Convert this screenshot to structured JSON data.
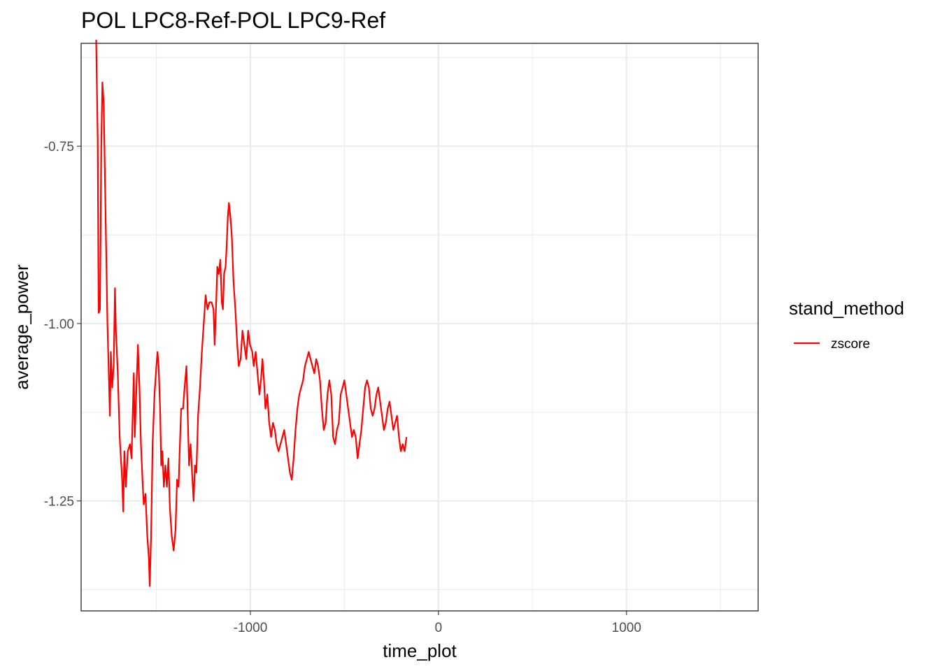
{
  "chart_data": {
    "type": "line",
    "title": "POL LPC8-Ref-POL LPC9-Ref",
    "xlabel": "time_plot",
    "ylabel": "average_power",
    "xlim": [
      -1900,
      1700
    ],
    "ylim": [
      -1.405,
      -0.605
    ],
    "x_ticks": [
      -1000,
      0,
      1000
    ],
    "x_tick_labels": [
      "-1000",
      "0",
      "1000"
    ],
    "y_ticks": [
      -1.25,
      -1.0,
      -0.75
    ],
    "y_tick_labels": [
      "-1.25",
      "-1.00",
      "-0.75"
    ],
    "x_minor": [
      -1500,
      -500,
      500,
      1500
    ],
    "y_minor": [
      -1.375,
      -1.125,
      -0.875,
      -0.625
    ],
    "grid": true,
    "legend": {
      "title": "stand_method",
      "position": "right",
      "entries": [
        "zscore"
      ]
    },
    "series": [
      {
        "name": "zscore",
        "color": "#ff0000",
        "points": [
          [
            -1820,
            -0.6
          ],
          [
            -1812,
            -0.74
          ],
          [
            -1807,
            -0.985
          ],
          [
            -1800,
            -0.98
          ],
          [
            -1793,
            -0.75
          ],
          [
            -1787,
            -0.66
          ],
          [
            -1780,
            -0.69
          ],
          [
            -1770,
            -0.85
          ],
          [
            -1760,
            -1.0
          ],
          [
            -1752,
            -1.08
          ],
          [
            -1747,
            -1.13
          ],
          [
            -1742,
            -1.04
          ],
          [
            -1735,
            -1.09
          ],
          [
            -1727,
            -1.06
          ],
          [
            -1720,
            -0.95
          ],
          [
            -1715,
            -1.01
          ],
          [
            -1705,
            -1.07
          ],
          [
            -1695,
            -1.16
          ],
          [
            -1682,
            -1.22
          ],
          [
            -1676,
            -1.265
          ],
          [
            -1670,
            -1.18
          ],
          [
            -1662,
            -1.23
          ],
          [
            -1652,
            -1.18
          ],
          [
            -1640,
            -1.17
          ],
          [
            -1632,
            -1.19
          ],
          [
            -1626,
            -1.13
          ],
          [
            -1620,
            -1.07
          ],
          [
            -1615,
            -1.16
          ],
          [
            -1606,
            -1.09
          ],
          [
            -1598,
            -1.03
          ],
          [
            -1590,
            -1.09
          ],
          [
            -1582,
            -1.17
          ],
          [
            -1574,
            -1.22
          ],
          [
            -1567,
            -1.255
          ],
          [
            -1558,
            -1.24
          ],
          [
            -1548,
            -1.3
          ],
          [
            -1540,
            -1.33
          ],
          [
            -1535,
            -1.37
          ],
          [
            -1528,
            -1.3
          ],
          [
            -1520,
            -1.17
          ],
          [
            -1510,
            -1.1
          ],
          [
            -1500,
            -1.06
          ],
          [
            -1494,
            -1.04
          ],
          [
            -1488,
            -1.06
          ],
          [
            -1480,
            -1.12
          ],
          [
            -1474,
            -1.2
          ],
          [
            -1468,
            -1.18
          ],
          [
            -1460,
            -1.23
          ],
          [
            -1452,
            -1.2
          ],
          [
            -1444,
            -1.23
          ],
          [
            -1436,
            -1.19
          ],
          [
            -1428,
            -1.26
          ],
          [
            -1418,
            -1.3
          ],
          [
            -1408,
            -1.32
          ],
          [
            -1398,
            -1.29
          ],
          [
            -1390,
            -1.22
          ],
          [
            -1382,
            -1.23
          ],
          [
            -1376,
            -1.18
          ],
          [
            -1368,
            -1.12
          ],
          [
            -1358,
            -1.12
          ],
          [
            -1350,
            -1.09
          ],
          [
            -1340,
            -1.06
          ],
          [
            -1332,
            -1.14
          ],
          [
            -1326,
            -1.2
          ],
          [
            -1318,
            -1.17
          ],
          [
            -1310,
            -1.21
          ],
          [
            -1302,
            -1.25
          ],
          [
            -1295,
            -1.2
          ],
          [
            -1287,
            -1.21
          ],
          [
            -1278,
            -1.13
          ],
          [
            -1268,
            -1.09
          ],
          [
            -1258,
            -1.04
          ],
          [
            -1248,
            -1.0
          ],
          [
            -1238,
            -0.96
          ],
          [
            -1228,
            -0.98
          ],
          [
            -1218,
            -0.97
          ],
          [
            -1206,
            -0.97
          ],
          [
            -1196,
            -0.98
          ],
          [
            -1190,
            -1.03
          ],
          [
            -1182,
            -0.97
          ],
          [
            -1176,
            -0.92
          ],
          [
            -1168,
            -0.93
          ],
          [
            -1160,
            -0.91
          ],
          [
            -1152,
            -0.97
          ],
          [
            -1146,
            -0.98
          ],
          [
            -1140,
            -0.93
          ],
          [
            -1132,
            -0.92
          ],
          [
            -1126,
            -0.89
          ],
          [
            -1120,
            -0.85
          ],
          [
            -1114,
            -0.83
          ],
          [
            -1106,
            -0.85
          ],
          [
            -1098,
            -0.88
          ],
          [
            -1090,
            -0.94
          ],
          [
            -1080,
            -0.98
          ],
          [
            -1070,
            -1.03
          ],
          [
            -1062,
            -1.06
          ],
          [
            -1052,
            -1.05
          ],
          [
            -1042,
            -1.01
          ],
          [
            -1032,
            -1.03
          ],
          [
            -1022,
            -1.05
          ],
          [
            -1012,
            -1.01
          ],
          [
            -1002,
            -1.03
          ],
          [
            -990,
            -1.04
          ],
          [
            -982,
            -1.06
          ],
          [
            -972,
            -1.04
          ],
          [
            -962,
            -1.07
          ],
          [
            -952,
            -1.1
          ],
          [
            -944,
            -1.08
          ],
          [
            -936,
            -1.05
          ],
          [
            -928,
            -1.08
          ],
          [
            -920,
            -1.12
          ],
          [
            -910,
            -1.1
          ],
          [
            -900,
            -1.14
          ],
          [
            -890,
            -1.16
          ],
          [
            -880,
            -1.14
          ],
          [
            -870,
            -1.15
          ],
          [
            -860,
            -1.17
          ],
          [
            -850,
            -1.18
          ],
          [
            -840,
            -1.17
          ],
          [
            -830,
            -1.16
          ],
          [
            -820,
            -1.15
          ],
          [
            -810,
            -1.17
          ],
          [
            -800,
            -1.19
          ],
          [
            -790,
            -1.21
          ],
          [
            -780,
            -1.22
          ],
          [
            -770,
            -1.19
          ],
          [
            -760,
            -1.15
          ],
          [
            -750,
            -1.12
          ],
          [
            -740,
            -1.1
          ],
          [
            -730,
            -1.09
          ],
          [
            -720,
            -1.08
          ],
          [
            -710,
            -1.06
          ],
          [
            -700,
            -1.05
          ],
          [
            -690,
            -1.04
          ],
          [
            -680,
            -1.05
          ],
          [
            -670,
            -1.06
          ],
          [
            -660,
            -1.07
          ],
          [
            -650,
            -1.05
          ],
          [
            -640,
            -1.06
          ],
          [
            -630,
            -1.08
          ],
          [
            -620,
            -1.12
          ],
          [
            -610,
            -1.15
          ],
          [
            -600,
            -1.14
          ],
          [
            -590,
            -1.1
          ],
          [
            -580,
            -1.08
          ],
          [
            -570,
            -1.1
          ],
          [
            -560,
            -1.16
          ],
          [
            -550,
            -1.17
          ],
          [
            -540,
            -1.15
          ],
          [
            -530,
            -1.14
          ],
          [
            -520,
            -1.1
          ],
          [
            -510,
            -1.09
          ],
          [
            -500,
            -1.08
          ],
          [
            -490,
            -1.1
          ],
          [
            -480,
            -1.12
          ],
          [
            -470,
            -1.14
          ],
          [
            -460,
            -1.16
          ],
          [
            -450,
            -1.15
          ],
          [
            -440,
            -1.16
          ],
          [
            -430,
            -1.19
          ],
          [
            -420,
            -1.17
          ],
          [
            -410,
            -1.15
          ],
          [
            -400,
            -1.12
          ],
          [
            -390,
            -1.09
          ],
          [
            -380,
            -1.08
          ],
          [
            -370,
            -1.09
          ],
          [
            -360,
            -1.12
          ],
          [
            -350,
            -1.13
          ],
          [
            -340,
            -1.12
          ],
          [
            -330,
            -1.1
          ],
          [
            -320,
            -1.09
          ],
          [
            -310,
            -1.11
          ],
          [
            -300,
            -1.13
          ],
          [
            -290,
            -1.15
          ],
          [
            -280,
            -1.14
          ],
          [
            -270,
            -1.12
          ],
          [
            -260,
            -1.11
          ],
          [
            -250,
            -1.13
          ],
          [
            -240,
            -1.15
          ],
          [
            -230,
            -1.14
          ],
          [
            -220,
            -1.13
          ],
          [
            -210,
            -1.16
          ],
          [
            -200,
            -1.18
          ],
          [
            -190,
            -1.17
          ],
          [
            -180,
            -1.18
          ],
          [
            -170,
            -1.16
          ]
        ]
      }
    ]
  }
}
